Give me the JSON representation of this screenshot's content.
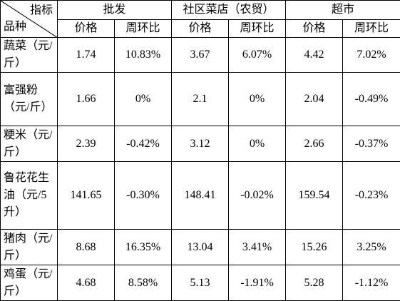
{
  "table": {
    "corner": {
      "column_header": "指标",
      "row_header": "品种"
    },
    "groups": [
      "批发",
      "社区菜店（农贸）",
      "超市"
    ],
    "subheaders": [
      "价格",
      "周环比",
      "价格",
      "周环比",
      "价格",
      "周环比"
    ],
    "rows": [
      {
        "label": "蔬菜（元/斤）",
        "cells": [
          "1.74",
          "10.83%",
          "3.67",
          "6.07%",
          "4.42",
          "7.02%"
        ]
      },
      {
        "label": "富强粉（元/斤）",
        "cells": [
          "1.66",
          "0%",
          "2.1",
          "0%",
          "2.04",
          "-0.49%"
        ]
      },
      {
        "label": "粳米（元/斤）",
        "cells": [
          "2.39",
          "-0.42%",
          "3.12",
          "0%",
          "2.66",
          "-0.37%"
        ]
      },
      {
        "label": "鲁花花生油（元/5升）",
        "cells": [
          "141.65",
          "-0.30%",
          "148.41",
          "-0.02%",
          "159.54",
          "-0.23%"
        ]
      },
      {
        "label": "猪肉（元/斤）",
        "cells": [
          "8.68",
          "16.35%",
          "13.04",
          "3.41%",
          "15.26",
          "3.25%"
        ]
      },
      {
        "label": "鸡蛋（元/斤）",
        "cells": [
          "4.68",
          "8.58%",
          "5.13",
          "-1.91%",
          "5.28",
          "-1.12%"
        ]
      }
    ]
  }
}
